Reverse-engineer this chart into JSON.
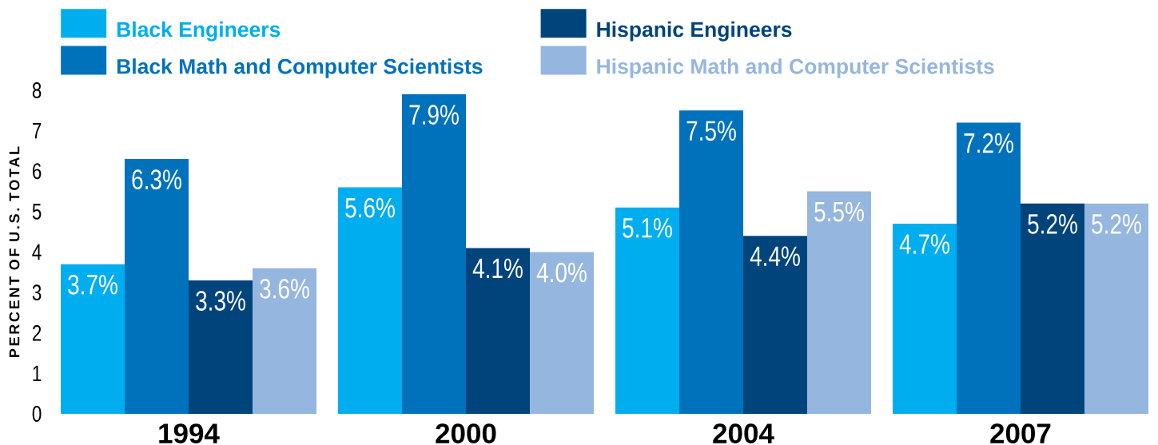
{
  "chart_data": {
    "type": "bar",
    "ylabel": "PERCENT OF U.S. TOTAL",
    "categories": [
      "1994",
      "2000",
      "2004",
      "2007"
    ],
    "series": [
      {
        "name": "Black Engineers",
        "color": "#00aeef",
        "values": [
          3.7,
          5.6,
          5.1,
          4.7
        ],
        "value_labels": [
          "3.7%",
          "5.6%",
          "5.1%",
          "4.7%"
        ]
      },
      {
        "name": "Black Math and Computer Scientists",
        "color": "#0072bc",
        "values": [
          6.3,
          7.9,
          7.5,
          7.2
        ],
        "value_labels": [
          "6.3%",
          "7.9%",
          "7.5%",
          "7.2%"
        ]
      },
      {
        "name": "Hispanic Engineers",
        "color": "#00447c",
        "values": [
          3.3,
          4.1,
          4.4,
          5.2
        ],
        "value_labels": [
          "3.3%",
          "4.1%",
          "4.4%",
          "5.2%"
        ]
      },
      {
        "name": "Hispanic Math and Computer Scientists",
        "color": "#95b6df",
        "values": [
          3.6,
          4.0,
          5.5,
          5.2
        ],
        "value_labels": [
          "3.6%",
          "4.0%",
          "5.5%",
          "5.2%"
        ]
      }
    ],
    "ylim": [
      0,
      8
    ],
    "yticks": [
      0,
      1,
      2,
      3,
      4,
      5,
      6,
      7,
      8
    ],
    "legend": "top"
  }
}
